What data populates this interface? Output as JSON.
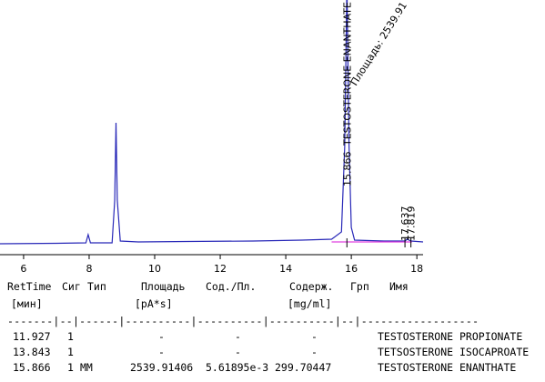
{
  "chart_data": {
    "type": "line",
    "xlim": [
      5.28,
      18.19
    ],
    "ylim": [
      0,
      280
    ],
    "xticks": [
      6,
      8,
      10,
      12,
      14,
      16,
      18
    ],
    "series": [
      {
        "color": "#2828b8",
        "x": [
          5.28,
          7.0,
          7.9,
          7.97,
          8.04,
          8.7,
          8.78,
          8.82,
          8.86,
          8.95,
          9.5,
          11,
          13,
          14.5,
          15.4,
          15.7,
          15.8,
          15.866,
          15.93,
          16.0,
          16.1,
          17.0,
          17.64,
          17.7,
          17.82,
          18.19
        ],
        "values": [
          12,
          12.5,
          13,
          22,
          13,
          13,
          60,
          145,
          60,
          15,
          14,
          14.5,
          15,
          16,
          17,
          25,
          120,
          300,
          120,
          30,
          16,
          15,
          15,
          17,
          15,
          14
        ]
      },
      {
        "color": "#e040e0",
        "x": [
          15.4,
          17.85
        ],
        "values": [
          14,
          14
        ]
      }
    ],
    "peak_labels": [
      15.866,
      17.637,
      17.819
    ],
    "compound_annotation": "TESTOSTERONE ENANTHATE",
    "area_annotation": "Площадь: 2539.91"
  },
  "table": {
    "headers": {
      "ret": "RetTime",
      "sig": "Сиг",
      "type": "Тип",
      "area": "Площадь",
      "ratio": "Сод./Пл.",
      "amount": "Содерж.",
      "grp": "Грп",
      "name": "Имя"
    },
    "units": {
      "ret": "[мин]",
      "area": "[pA*s]",
      "amount": "[mg/ml]"
    },
    "separator": "-------|--|------|----------|----------|----------|--|------------------",
    "rows": [
      {
        "ret": "11.927",
        "sig": "1",
        "area": "-",
        "ratio": "-",
        "amount": "-",
        "name": "TESTOSTERONE PROPIONATE"
      },
      {
        "ret": "13.843",
        "sig": "1",
        "area": "-",
        "ratio": "-",
        "amount": "-",
        "name": "TETSOSTERONE ISOCAPROATE"
      },
      {
        "ret": "15.866",
        "sig": "1",
        "type": "MM",
        "area": "2539.91406",
        "ratio": "5.61895e-3",
        "amount": "299.70447",
        "name": "TESTOSTERONE ENANTHATE"
      }
    ]
  }
}
